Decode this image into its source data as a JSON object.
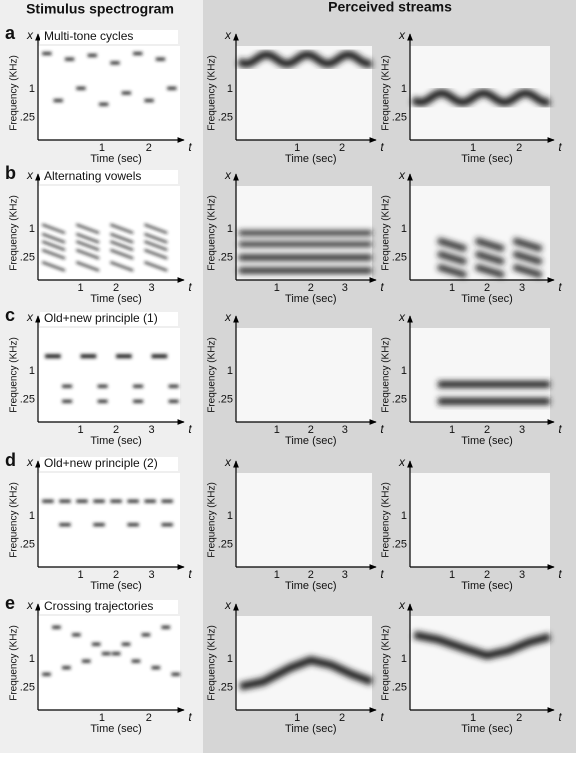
{
  "header": {
    "left": "Stimulus spectrogram",
    "right": "Perceived streams"
  },
  "axes": {
    "y_label": "Frequency (KHz)",
    "x_label": "Time (sec)",
    "y_symbol": "x",
    "x_symbol": "t",
    "yticks": [
      "1",
      ".25"
    ]
  },
  "rows": [
    {
      "letter": "a",
      "title": "Multi-tone cycles",
      "xticks": [
        "1",
        "2"
      ]
    },
    {
      "letter": "b",
      "title": "Alternating vowels",
      "xticks": [
        "1",
        "2",
        "3"
      ]
    },
    {
      "letter": "c",
      "title": "Old+new principle (1)",
      "xticks": [
        "1",
        "2",
        "3"
      ]
    },
    {
      "letter": "d",
      "title": "Old+new principle (2)",
      "xticks": [
        "1",
        "2",
        "3"
      ]
    },
    {
      "letter": "e",
      "title": "Crossing trajectories",
      "xticks": [
        "1",
        "2"
      ]
    }
  ]
}
